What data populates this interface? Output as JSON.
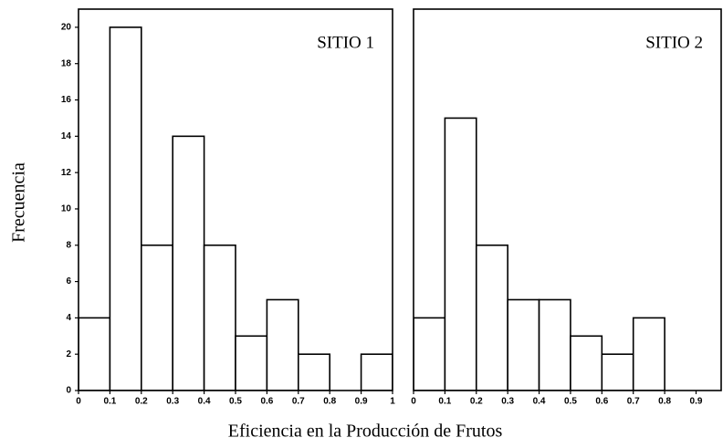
{
  "chart_data": [
    {
      "type": "histogram",
      "title": "SITIO 1",
      "ylabel": "Frecuencia",
      "xlabel": "Eficiencia en la Producción de Frutos",
      "bins": [
        0,
        0.1,
        0.2,
        0.3,
        0.4,
        0.5,
        0.6,
        0.7,
        0.8,
        0.9,
        1
      ],
      "counts": [
        4,
        20,
        8,
        14,
        8,
        3,
        5,
        2,
        0,
        2
      ],
      "color": "#ffffff",
      "xlim": [
        0,
        1
      ],
      "xticks": [
        0,
        0.1,
        0.2,
        0.3,
        0.4,
        0.5,
        0.6,
        0.7,
        0.8,
        0.9,
        1
      ],
      "ylim": [
        0,
        21
      ],
      "yticks": [
        0,
        2,
        4,
        6,
        8,
        10,
        12,
        14,
        16,
        18,
        20
      ]
    },
    {
      "type": "histogram",
      "title": "SITIO 2",
      "bins": [
        0,
        0.1,
        0.2,
        0.3,
        0.4,
        0.5,
        0.6,
        0.7,
        0.8,
        0.9,
        1
      ],
      "counts": [
        4,
        15,
        8,
        5,
        5,
        3,
        2,
        4,
        0,
        0
      ],
      "color": "#ffffff",
      "xlim": [
        0,
        0.98
      ],
      "xticks": [
        0,
        0.1,
        0.2,
        0.3,
        0.4,
        0.5,
        0.6,
        0.7,
        0.8,
        0.9
      ],
      "ylim": [
        0,
        21
      ]
    }
  ]
}
